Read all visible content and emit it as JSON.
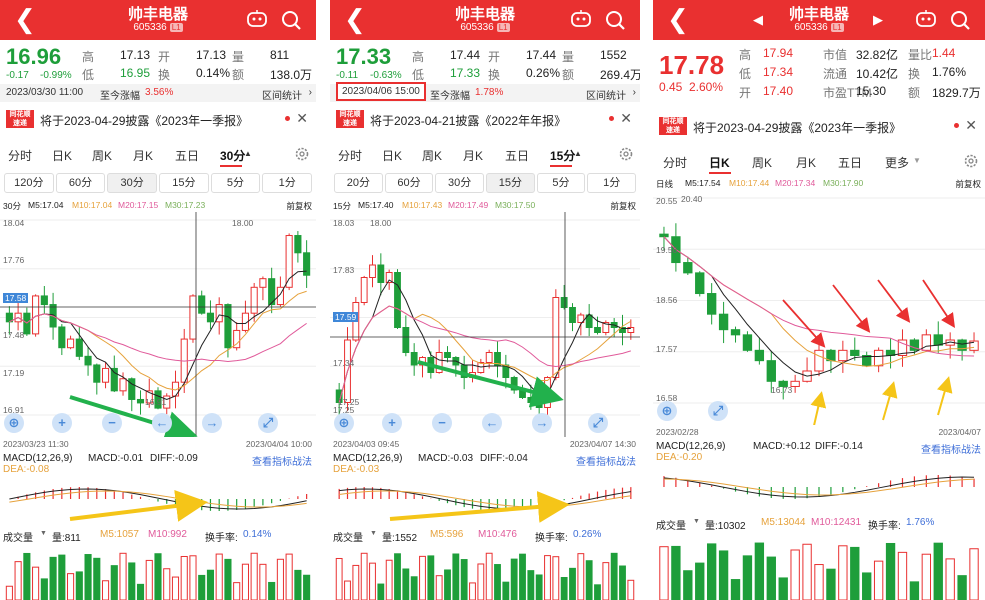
{
  "panels": [
    {
      "app_title": "帅丰电器",
      "code": "605336",
      "badge": "L1",
      "price": "16.96",
      "change": "-0.17",
      "change_pct": "-0.99%",
      "stats": {
        "high_label": "高",
        "high": "17.13",
        "open_label": "开",
        "open": "17.13",
        "vol_label": "量",
        "vol": "811",
        "low_label": "低",
        "low": "16.95",
        "turn_label": "换",
        "turn": "0.14%",
        "amt_label": "额",
        "amt": "138.0万"
      },
      "cursor_date": "2023/03/30 11:00",
      "since_label": "至今涨幅",
      "since_value": "3.56%",
      "stats_link": "区间统计",
      "notice_logo": "同花顺 速递",
      "notice": "将于2023-04-29披露《2023年一季报》",
      "tabs": [
        "分时",
        "日K",
        "周K",
        "月K",
        "五日",
        "30分"
      ],
      "intervals": [
        "120分",
        "60分",
        "30分",
        "15分",
        "5分",
        "1分"
      ],
      "chart_period": "30分",
      "ma": [
        "M5:17.04",
        "M10:17.04",
        "M20:17.15",
        "M30:17.23"
      ],
      "adjust": "前复权",
      "yaxis": [
        "18.04",
        "17.76",
        "17.58",
        "17.48",
        "17.19",
        "16.91"
      ],
      "x_start": "2023/03/23 11:30",
      "x_end": "2023/04/04 10:00",
      "hi_mark": "18.00",
      "lo_mark": "16.91",
      "macd": {
        "name": "MACD(12,26,9)",
        "value": "MACD:-0.01",
        "diff": "DIFF:-0.09",
        "dea": "DEA:-0.08",
        "link": "查看指标战法"
      },
      "volume": {
        "name": "成交量",
        "value": "量:811",
        "m5": "M5:1057",
        "m10": "M10:992",
        "turn": "换手率:",
        "turn_val": "0.14%"
      }
    },
    {
      "app_title": "帅丰电器",
      "code": "605336",
      "badge": "L1",
      "price": "17.33",
      "change": "-0.11",
      "change_pct": "-0.63%",
      "stats": {
        "high_label": "高",
        "high": "17.44",
        "open_label": "开",
        "open": "17.44",
        "vol_label": "量",
        "vol": "1552",
        "low_label": "低",
        "low": "17.33",
        "turn_label": "换",
        "turn": "0.26%",
        "amt_label": "额",
        "amt": "269.4万"
      },
      "cursor_date": "2023/04/06 15:00",
      "since_label": "至今涨幅",
      "since_value": "1.78%",
      "stats_link": "区间统计",
      "notice_logo": "同花顺 速递",
      "notice": "将于2023-04-21披露《2022年年报》",
      "tabs": [
        "分时",
        "日K",
        "周K",
        "月K",
        "五日",
        "15分"
      ],
      "intervals": [
        "20分",
        "60分",
        "30分",
        "15分",
        "5分",
        "1分"
      ],
      "chart_period": "15分",
      "ma": [
        "M5:17.40",
        "M10:17.43",
        "M20:17.49",
        "M30:17.50"
      ],
      "adjust": "前复权",
      "yaxis": [
        "18.03",
        "17.83",
        "17.59",
        "17.34",
        "17.25"
      ],
      "x_start": "2023/04/03 09:45",
      "x_end": "2023/04/07 14:30",
      "hi_mark": "18.00",
      "lo_mark": "17.25",
      "macd": {
        "name": "MACD(12,26,9)",
        "value": "MACD:-0.03",
        "diff": "DIFF:-0.04",
        "dea": "DEA:-0.03",
        "link": "查看指标战法"
      },
      "volume": {
        "name": "成交量",
        "value": "量:1552",
        "m5": "M5:596",
        "m10": "M10:476",
        "turn": "换手率:",
        "turn_val": "0.26%"
      }
    },
    {
      "app_title": "帅丰电器",
      "code": "605336",
      "badge": "L1",
      "price": "17.78",
      "change": "0.45",
      "change_pct": "2.60%",
      "stats": {
        "high_label": "高",
        "high": "17.94",
        "mcap_label": "市值",
        "mcap": "32.82亿",
        "vr_label": "量比",
        "vr": "1.44",
        "low_label": "低",
        "low": "17.34",
        "float_label": "流通",
        "float": "10.42亿",
        "turn_label": "换",
        "turn": "1.76%",
        "open_label": "开",
        "open": "17.40",
        "pe_label": "市盈TTM",
        "pe": "15.30",
        "amt_label": "额",
        "amt": "1829.7万"
      },
      "notice_logo": "同花顺 速递",
      "notice": "将于2023-04-29披露《2023年一季报》",
      "tabs": [
        "分时",
        "日K",
        "周K",
        "月K",
        "五日",
        "更多"
      ],
      "chart_period": "日线",
      "ma": [
        "M5:17.54",
        "M10:17.44",
        "M20:17.34",
        "M30:17.90"
      ],
      "adjust": "前复权",
      "yaxis": [
        "20.55",
        "19.56",
        "18.56",
        "17.57",
        "16.58"
      ],
      "x_start": "2023/02/28",
      "x_end": "2023/04/07",
      "hi_mark": "20.40",
      "lo_mark": "16.73",
      "macd": {
        "name": "MACD(12,26,9)",
        "value": "MACD:+0.12",
        "diff": "DIFF:-0.14",
        "dea": "DEA:-0.20",
        "link": "查看指标战法"
      },
      "volume": {
        "name": "成交量",
        "value": "量:10302",
        "m5": "M5:13044",
        "m10": "M10:12431",
        "turn": "换手率:",
        "turn_val": "1.76%"
      }
    }
  ],
  "colors": {
    "up": "#e93030",
    "down": "#1e9e3a",
    "m5": "#222222",
    "m10": "#e6a23c",
    "m20": "#e05a9a",
    "m30": "#7ab05a",
    "arrow_green": "#22b14c",
    "arrow_yellow": "#f5c518",
    "accent": "#e93030"
  },
  "chart_data": [
    {
      "type": "candlestick",
      "title": "帅丰电器 30分",
      "ylim": [
        16.91,
        18.04
      ],
      "closes": [
        17.45,
        17.5,
        17.38,
        17.6,
        17.55,
        17.42,
        17.3,
        17.35,
        17.25,
        17.2,
        17.1,
        17.18,
        17.05,
        17.12,
        17.0,
        16.98,
        17.05,
        16.95,
        17.02,
        17.1,
        17.35,
        17.6,
        17.5,
        17.45,
        17.55,
        17.3,
        17.4,
        17.5,
        17.65,
        17.7,
        17.55,
        17.65,
        17.95,
        17.85,
        17.72
      ]
    },
    {
      "type": "candlestick",
      "title": "帅丰电器 15分",
      "ylim": [
        17.25,
        18.03
      ],
      "closes": [
        17.3,
        17.55,
        17.7,
        17.8,
        17.85,
        17.78,
        17.82,
        17.6,
        17.5,
        17.45,
        17.48,
        17.42,
        17.5,
        17.48,
        17.45,
        17.4,
        17.42,
        17.46,
        17.5,
        17.45,
        17.4,
        17.35,
        17.32,
        17.3,
        17.28,
        17.4,
        17.72,
        17.68,
        17.62,
        17.65,
        17.6,
        17.58,
        17.62,
        17.6,
        17.58,
        17.6
      ]
    },
    {
      "type": "candlestick",
      "title": "帅丰电器 日线",
      "ylim": [
        16.58,
        20.55
      ],
      "closes": [
        19.8,
        19.3,
        19.1,
        18.7,
        18.3,
        18.0,
        17.9,
        17.6,
        17.4,
        17.0,
        16.9,
        17.0,
        17.2,
        17.6,
        17.4,
        17.6,
        17.5,
        17.3,
        17.6,
        17.5,
        17.8,
        17.6,
        17.9,
        17.7,
        17.8,
        17.6,
        17.78
      ]
    }
  ]
}
